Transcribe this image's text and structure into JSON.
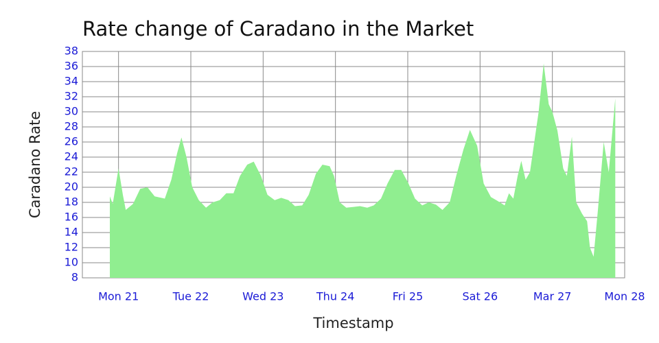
{
  "chart_data": {
    "type": "area",
    "title": "Rate change of Caradano in the Market",
    "xlabel": "Timestamp",
    "ylabel": "Caradano Rate",
    "x": [
      20.88,
      20.92,
      21.0,
      21.06,
      21.1,
      21.2,
      21.3,
      21.4,
      21.5,
      21.64,
      21.73,
      21.81,
      21.87,
      21.94,
      22.02,
      22.11,
      22.21,
      22.3,
      22.4,
      22.49,
      22.59,
      22.68,
      22.78,
      22.87,
      22.97,
      23.06,
      23.16,
      23.25,
      23.35,
      23.44,
      23.54,
      23.63,
      23.73,
      23.82,
      23.92,
      23.98,
      24.06,
      24.15,
      24.25,
      24.34,
      24.44,
      24.53,
      24.63,
      24.72,
      24.82,
      24.91,
      25.01,
      25.1,
      25.2,
      25.29,
      25.39,
      25.48,
      25.58,
      25.67,
      25.77,
      25.86,
      25.96,
      26.05,
      26.15,
      26.24,
      26.34,
      26.4,
      26.46,
      26.52,
      26.57,
      26.63,
      26.69,
      26.75,
      26.81,
      26.88,
      26.95,
      27.0,
      27.07,
      27.15,
      27.2,
      27.27,
      27.33,
      27.41,
      27.48,
      27.52,
      27.57,
      27.63,
      27.71,
      27.78,
      27.87
    ],
    "series": [
      {
        "name": "Caradano Rate",
        "color": "#90ee90",
        "values": [
          18.8,
          17.8,
          22.5,
          19,
          17,
          17.8,
          19.8,
          20,
          18.8,
          18.5,
          21,
          24.5,
          26.6,
          24,
          20,
          18.3,
          17.3,
          18,
          18.3,
          19.2,
          19.2,
          21.5,
          23,
          23.4,
          21.5,
          19,
          18.3,
          18.6,
          18.3,
          17.5,
          17.6,
          19,
          21.8,
          23,
          22.8,
          21.5,
          18,
          17.3,
          17.4,
          17.5,
          17.3,
          17.6,
          18.5,
          20.5,
          22.3,
          22.3,
          20.5,
          18.5,
          17.6,
          18,
          17.7,
          17,
          18,
          21.5,
          25,
          27.6,
          25.5,
          20.5,
          18.7,
          18.2,
          17.6,
          19.2,
          18.5,
          21.5,
          23.5,
          21,
          22,
          26,
          30,
          36.4,
          31,
          30,
          27.5,
          22.5,
          21.5,
          26.7,
          18,
          16.5,
          15.5,
          12,
          10.8,
          17,
          26,
          22,
          31.8
        ]
      }
    ],
    "xlim": [
      20.5,
      28
    ],
    "xticks": [
      {
        "value": 21,
        "label": "Mon 21"
      },
      {
        "value": 22,
        "label": "Tue 22"
      },
      {
        "value": 23,
        "label": "Wed 23"
      },
      {
        "value": 24,
        "label": "Thu 24"
      },
      {
        "value": 25,
        "label": "Fri 25"
      },
      {
        "value": 26,
        "label": "Sat 26"
      },
      {
        "value": 27,
        "label": "Mar 27"
      },
      {
        "value": 28,
        "label": "Mon 28"
      }
    ],
    "ylim": [
      8,
      38
    ],
    "yticks": [
      8,
      10,
      12,
      14,
      16,
      18,
      20,
      22,
      24,
      26,
      28,
      30,
      32,
      34,
      36,
      38
    ],
    "grid": true
  }
}
